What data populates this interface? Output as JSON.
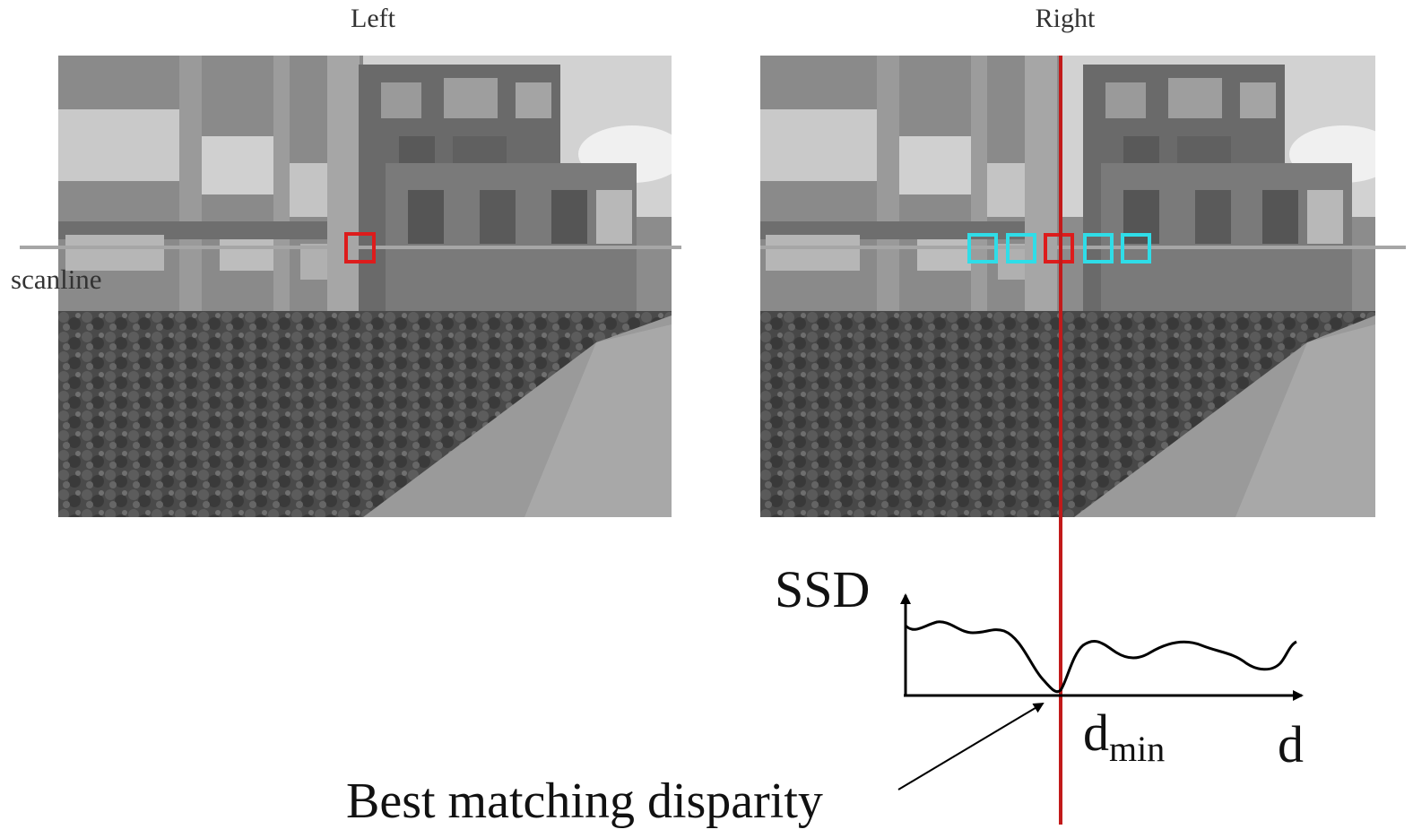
{
  "titles": {
    "left": "Left",
    "right": "Right"
  },
  "scanline_label": "scanline",
  "plot": {
    "ylabel": "SSD",
    "xlabel": "d",
    "min_label_base": "d",
    "min_label_sub": "min",
    "annotation": "Best matching disparity"
  },
  "colors": {
    "reference_patch": "#dd1c1c",
    "candidate_patches": "#2fdde8",
    "best_match_line": "#c21a1a",
    "scanline": "#a6a6a6"
  },
  "candidate_patch_count": 5
}
